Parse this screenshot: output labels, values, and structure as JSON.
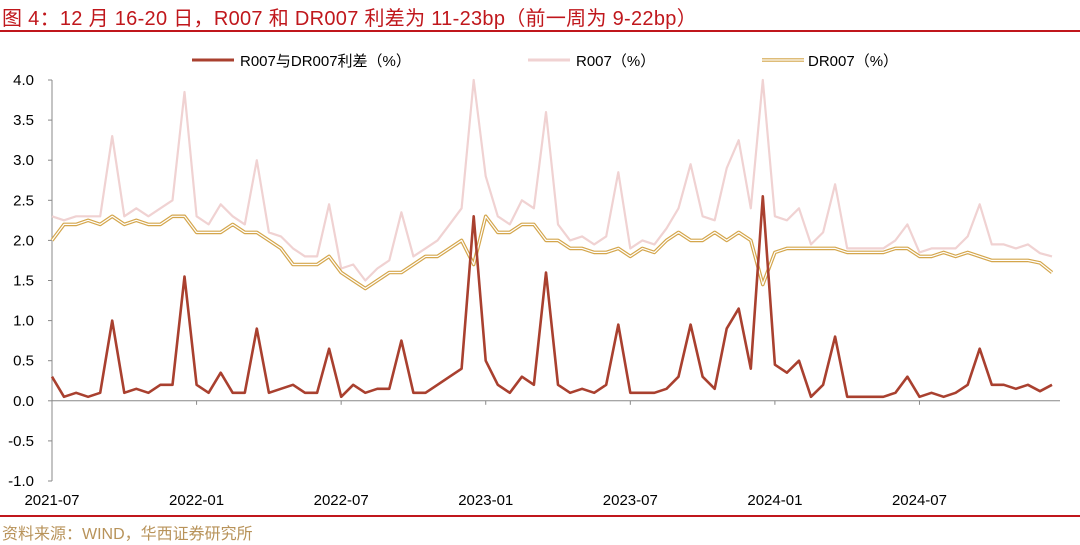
{
  "title": "图 4：12 月 16-20 日，R007 和 DR007 利差为 11-23bp（前一周为 9-22bp）",
  "source": "资料来源：WIND，华西证券研究所",
  "colors": {
    "title": "#c0171c",
    "spread": "#a9402f",
    "r007": "#f0d2d2",
    "dr007_outer": "#d4a64c",
    "dr007_inner": "#ffffff",
    "source": "#b8935a"
  },
  "chart_data": {
    "type": "line",
    "title": "",
    "xlabel": "",
    "ylabel": "",
    "ylim": [
      -1.0,
      4.0
    ],
    "yticks": [
      "4.0",
      "3.5",
      "3.0",
      "2.5",
      "2.0",
      "1.5",
      "1.0",
      "0.5",
      "0.0",
      "-0.5",
      "-1.0"
    ],
    "ytick_values": [
      4.0,
      3.5,
      3.0,
      2.5,
      2.0,
      1.5,
      1.0,
      0.5,
      0.0,
      -0.5,
      -1.0
    ],
    "xtick_labels": [
      "2021-07",
      "2022-01",
      "2022-07",
      "2023-01",
      "2023-07",
      "2024-01",
      "2024-07"
    ],
    "xtick_index": [
      0,
      12,
      24,
      36,
      48,
      60,
      72
    ],
    "grid": false,
    "legend_placement": "top",
    "x": [
      "2021-07-01",
      "2021-07-16",
      "2021-08-01",
      "2021-08-16",
      "2021-09-01",
      "2021-09-16",
      "2021-10-01",
      "2021-10-16",
      "2021-11-01",
      "2021-11-16",
      "2021-12-01",
      "2021-12-16",
      "2022-01-01",
      "2022-01-16",
      "2022-02-01",
      "2022-02-16",
      "2022-03-01",
      "2022-03-16",
      "2022-04-01",
      "2022-04-16",
      "2022-05-01",
      "2022-05-16",
      "2022-06-01",
      "2022-06-16",
      "2022-07-01",
      "2022-07-16",
      "2022-08-01",
      "2022-08-16",
      "2022-09-01",
      "2022-09-16",
      "2022-10-01",
      "2022-10-16",
      "2022-11-01",
      "2022-11-16",
      "2022-12-01",
      "2022-12-16",
      "2023-01-01",
      "2023-01-16",
      "2023-02-01",
      "2023-02-16",
      "2023-03-01",
      "2023-03-16",
      "2023-04-01",
      "2023-04-16",
      "2023-05-01",
      "2023-05-16",
      "2023-06-01",
      "2023-06-16",
      "2023-07-01",
      "2023-07-16",
      "2023-08-01",
      "2023-08-16",
      "2023-09-01",
      "2023-09-16",
      "2023-10-01",
      "2023-10-16",
      "2023-11-01",
      "2023-11-16",
      "2023-12-01",
      "2023-12-16",
      "2024-01-01",
      "2024-01-16",
      "2024-02-01",
      "2024-02-16",
      "2024-03-01",
      "2024-03-16",
      "2024-04-01",
      "2024-04-16",
      "2024-05-01",
      "2024-05-16",
      "2024-06-01",
      "2024-06-16",
      "2024-07-01",
      "2024-07-16",
      "2024-08-01",
      "2024-08-16",
      "2024-09-01",
      "2024-09-16",
      "2024-10-01",
      "2024-10-16",
      "2024-11-01",
      "2024-11-16",
      "2024-12-01",
      "2024-12-16"
    ],
    "series": [
      {
        "name": "R007（%）",
        "key": "r007",
        "values": [
          2.3,
          2.25,
          2.3,
          2.3,
          2.3,
          3.3,
          2.3,
          2.4,
          2.3,
          2.4,
          2.5,
          3.85,
          2.3,
          2.2,
          2.45,
          2.3,
          2.2,
          3.0,
          2.1,
          2.05,
          1.9,
          1.8,
          1.8,
          2.45,
          1.65,
          1.7,
          1.5,
          1.65,
          1.75,
          2.35,
          1.8,
          1.9,
          2.0,
          2.2,
          2.4,
          4.0,
          2.8,
          2.3,
          2.2,
          2.5,
          2.4,
          3.6,
          2.2,
          2.0,
          2.05,
          1.95,
          2.05,
          2.85,
          1.9,
          2.0,
          1.95,
          2.15,
          2.4,
          2.95,
          2.3,
          2.25,
          2.9,
          3.25,
          2.4,
          4.0,
          2.3,
          2.25,
          2.4,
          1.95,
          2.1,
          2.7,
          1.9,
          1.9,
          1.9,
          1.9,
          2.0,
          2.2,
          1.85,
          1.9,
          1.9,
          1.9,
          2.05,
          2.45,
          1.95,
          1.95,
          1.9,
          1.95,
          1.84,
          1.8
        ]
      },
      {
        "name": "DR007（%）",
        "key": "dr007",
        "values": [
          2.0,
          2.2,
          2.2,
          2.25,
          2.2,
          2.3,
          2.2,
          2.25,
          2.2,
          2.2,
          2.3,
          2.3,
          2.1,
          2.1,
          2.1,
          2.2,
          2.1,
          2.1,
          2.0,
          1.9,
          1.7,
          1.7,
          1.7,
          1.8,
          1.6,
          1.5,
          1.4,
          1.5,
          1.6,
          1.6,
          1.7,
          1.8,
          1.8,
          1.9,
          2.0,
          1.7,
          2.3,
          2.1,
          2.1,
          2.2,
          2.2,
          2.0,
          2.0,
          1.9,
          1.9,
          1.85,
          1.85,
          1.9,
          1.8,
          1.9,
          1.85,
          2.0,
          2.1,
          2.0,
          2.0,
          2.1,
          2.0,
          2.1,
          2.0,
          1.45,
          1.85,
          1.9,
          1.9,
          1.9,
          1.9,
          1.9,
          1.85,
          1.85,
          1.85,
          1.85,
          1.9,
          1.9,
          1.8,
          1.8,
          1.85,
          1.8,
          1.85,
          1.8,
          1.75,
          1.75,
          1.75,
          1.75,
          1.72,
          1.6
        ]
      },
      {
        "name": "R007与DR007利差（%）",
        "key": "spread",
        "values": [
          0.3,
          0.05,
          0.1,
          0.05,
          0.1,
          1.0,
          0.1,
          0.15,
          0.1,
          0.2,
          0.2,
          1.55,
          0.2,
          0.1,
          0.35,
          0.1,
          0.1,
          0.9,
          0.1,
          0.15,
          0.2,
          0.1,
          0.1,
          0.65,
          0.05,
          0.2,
          0.1,
          0.15,
          0.15,
          0.75,
          0.1,
          0.1,
          0.2,
          0.3,
          0.4,
          2.3,
          0.5,
          0.2,
          0.1,
          0.3,
          0.2,
          1.6,
          0.2,
          0.1,
          0.15,
          0.1,
          0.2,
          0.95,
          0.1,
          0.1,
          0.1,
          0.15,
          0.3,
          0.95,
          0.3,
          0.15,
          0.9,
          1.15,
          0.4,
          2.55,
          0.45,
          0.35,
          0.5,
          0.05,
          0.2,
          0.8,
          0.05,
          0.05,
          0.05,
          0.05,
          0.1,
          0.3,
          0.05,
          0.1,
          0.05,
          0.1,
          0.2,
          0.65,
          0.2,
          0.2,
          0.15,
          0.2,
          0.12,
          0.2
        ]
      }
    ],
    "legend": [
      "R007与DR007利差（%）",
      "R007（%）",
      "DR007（%）"
    ]
  }
}
